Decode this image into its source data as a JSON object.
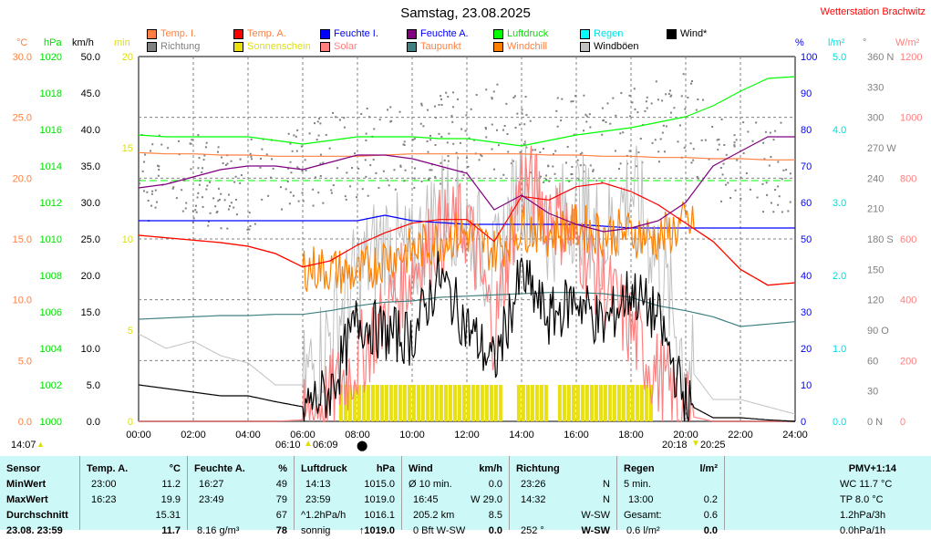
{
  "title": "Samstag, 23.08.2025",
  "station": "Wetterstation Brachwitz",
  "legend": [
    {
      "label": "Temp. I.",
      "color": "#ff8040",
      "text": "#ff8040"
    },
    {
      "label": "Temp. A.",
      "color": "#ff0000",
      "text": "#ff8040"
    },
    {
      "label": "Feuchte I.",
      "color": "#0000ff",
      "text": "#0000ff"
    },
    {
      "label": "Feuchte A.",
      "color": "#800080",
      "text": "#0000ff"
    },
    {
      "label": "Luftdruck",
      "color": "#00ff00",
      "text": "#00e000"
    },
    {
      "label": "Regen",
      "color": "#00ffff",
      "text": "#00e0e0"
    },
    {
      "label": "Wind*",
      "color": "#000000",
      "text": "#000000"
    },
    {
      "label": "Richtung",
      "color": "#808080",
      "text": "#808080"
    },
    {
      "label": "Sonnenschein",
      "color": "#e8e010",
      "text": "#e0e000"
    },
    {
      "label": "Solar",
      "color": "#ff8080",
      "text": "#ff8080"
    },
    {
      "label": "Taupunkt",
      "color": "#408080",
      "text": "#ff8040"
    },
    {
      "label": "Windchill",
      "color": "#ff8000",
      "text": "#ff8040"
    },
    {
      "label": "Windböen",
      "color": "#c0c0c0",
      "text": "#000000"
    }
  ],
  "units": {
    "c": "°C",
    "hpa": "hPa",
    "kmh": "km/h",
    "min": "min",
    "pct": "%",
    "rain": "l/m²",
    "deg": "°",
    "wm2": "W/m²"
  },
  "chart_data": {
    "type": "line",
    "title": "Samstag, 23.08.2025",
    "x_hours": [
      0,
      1,
      2,
      3,
      4,
      5,
      6,
      7,
      8,
      9,
      10,
      11,
      12,
      13,
      14,
      15,
      16,
      17,
      18,
      19,
      20,
      21,
      22,
      23,
      24
    ],
    "xticks": [
      "00:00",
      "02:00",
      "04:00",
      "06:00",
      "08:00",
      "10:00",
      "12:00",
      "14:00",
      "16:00",
      "18:00",
      "20:00",
      "22:00",
      "24:00"
    ],
    "axes": {
      "temp_c": {
        "range": [
          0,
          30
        ],
        "ticks": [
          "30.0",
          "25.0",
          "20.0",
          "15.0",
          "10.0",
          "5.0",
          "0.0"
        ]
      },
      "pressure_hpa": {
        "range": [
          1000,
          1020
        ],
        "ticks": [
          "1020",
          "1018",
          "1016",
          "1014",
          "1012",
          "1010",
          "1008",
          "1006",
          "1004",
          "1002",
          "1000"
        ]
      },
      "wind_kmh": {
        "range": [
          0,
          50
        ],
        "ticks": [
          "50.0",
          "45.0",
          "40.0",
          "35.0",
          "30.0",
          "25.0",
          "20.0",
          "15.0",
          "10.0",
          "5.0",
          "0.0"
        ]
      },
      "sun_min": {
        "range": [
          0,
          20
        ],
        "ticks": [
          "20",
          "15",
          "10",
          "5",
          "0"
        ]
      },
      "humidity_pct": {
        "range": [
          0,
          100
        ],
        "ticks": [
          "100",
          "90",
          "80",
          "70",
          "60",
          "50",
          "40",
          "30",
          "20",
          "10",
          "0"
        ]
      },
      "rain_lm2": {
        "range": [
          0,
          5
        ],
        "ticks": [
          "5.0",
          "4.0",
          "3.0",
          "2.0",
          "1.0",
          "0.0"
        ]
      },
      "direction_deg": {
        "range": [
          0,
          360
        ],
        "ticks": [
          "360 N",
          "330",
          "300",
          "270 W",
          "240",
          "210",
          "180 S",
          "150",
          "120",
          "90 O",
          "60",
          "30",
          "0 N"
        ]
      },
      "solar_wm2": {
        "range": [
          0,
          1200
        ],
        "ticks": [
          "1200",
          "1000",
          "800",
          "600",
          "400",
          "200",
          "0"
        ]
      }
    },
    "series": [
      {
        "name": "Temp. I.",
        "axis": "temp_c",
        "color": "#ff8040",
        "values": [
          22.1,
          22.0,
          22.0,
          21.9,
          21.9,
          21.8,
          21.8,
          21.8,
          21.8,
          21.9,
          22.0,
          22.0,
          22.0,
          22.0,
          22.0,
          21.9,
          21.9,
          21.8,
          21.8,
          21.7,
          21.7,
          21.6,
          21.6,
          21.5,
          21.5
        ]
      },
      {
        "name": "Temp. A.",
        "axis": "temp_c",
        "color": "#ff0000",
        "values": [
          15.3,
          15.1,
          14.9,
          14.7,
          14.4,
          13.8,
          12.7,
          13.2,
          14.5,
          15.5,
          16.3,
          16.6,
          16.6,
          14.8,
          18.5,
          18.2,
          19.3,
          19.6,
          18.9,
          17.8,
          16.3,
          14.8,
          12.5,
          11.2,
          11.4
        ]
      },
      {
        "name": "Feuchte I.",
        "axis": "humidity_pct",
        "color": "#0000ff",
        "values": [
          55,
          55,
          55,
          55,
          55,
          55,
          55,
          55,
          55,
          56.5,
          55,
          54.5,
          54,
          54,
          54,
          54,
          54,
          53.5,
          53,
          53,
          53,
          53,
          53,
          53,
          53
        ]
      },
      {
        "name": "Feuchte A.",
        "axis": "humidity_pct",
        "color": "#800080",
        "values": [
          64,
          65,
          67,
          69,
          70,
          70,
          69,
          71,
          73,
          73,
          72,
          70,
          68,
          58,
          62,
          57,
          54,
          52,
          53,
          55,
          60,
          70,
          74,
          78,
          78
        ]
      },
      {
        "name": "Luftdruck",
        "axis": "pressure_hpa",
        "color": "#00ff00",
        "values": [
          1015.7,
          1015.6,
          1015.6,
          1015.6,
          1015.6,
          1015.4,
          1015.2,
          1015.4,
          1015.6,
          1015.6,
          1015.6,
          1015.5,
          1015.5,
          1015.3,
          1015.1,
          1015.4,
          1015.7,
          1015.9,
          1016.1,
          1016.4,
          1016.7,
          1017.3,
          1018.1,
          1018.8,
          1018.9
        ]
      },
      {
        "name": "Taupunkt",
        "axis": "temp_c",
        "color": "#408080",
        "values": [
          8.4,
          8.5,
          8.6,
          8.7,
          8.7,
          8.8,
          8.8,
          9.1,
          9.5,
          9.8,
          9.9,
          10.2,
          10.3,
          10.4,
          10.5,
          10.6,
          10.6,
          10.5,
          10.2,
          9.5,
          9.1,
          8.6,
          7.8,
          8.0,
          8.2
        ]
      },
      {
        "name": "Windchill",
        "axis": "temp_c",
        "color": "#ff8000",
        "values": [
          15.3,
          15.1,
          14.9,
          14.7,
          14.4,
          13.8,
          12.7,
          12.5,
          12.0,
          13.5,
          14.0,
          15.0,
          15.5,
          14.0,
          16.0,
          15.5,
          16.0,
          15.5,
          15.5,
          15.0,
          16.3,
          14.8,
          12.5,
          11.2,
          11.4
        ]
      },
      {
        "name": "Wind*",
        "axis": "wind_kmh",
        "color": "#000000",
        "values": [
          5,
          4.5,
          4,
          3.5,
          3.5,
          2.7,
          2,
          4,
          14,
          12,
          11.5,
          20,
          13,
          7.7,
          20,
          14,
          17,
          13,
          18,
          14,
          2.5,
          0.5,
          0.5,
          0.2,
          0
        ]
      },
      {
        "name": "Windböen",
        "axis": "wind_kmh",
        "color": "#c0c0c0",
        "values": [
          12,
          10,
          11,
          9,
          8,
          5,
          5,
          12,
          20,
          25,
          22,
          30,
          28,
          20,
          33,
          26,
          30,
          25,
          32,
          22,
          8,
          3,
          3,
          2,
          1
        ]
      },
      {
        "name": "Solar",
        "axis": "solar_wm2",
        "color": "#ff8080",
        "values": [
          0,
          0,
          0,
          0,
          0,
          0,
          5,
          80,
          200,
          350,
          500,
          620,
          650,
          300,
          800,
          700,
          600,
          450,
          300,
          150,
          20,
          0,
          0,
          0,
          0
        ]
      },
      {
        "name": "Richtung",
        "axis": "direction_deg",
        "color": "#808080",
        "values": [
          240,
          245,
          240,
          235,
          235,
          240,
          250,
          260,
          265,
          270,
          275,
          280,
          285,
          290,
          280,
          275,
          285,
          280,
          290,
          300,
          300,
          260,
          255,
          252,
          252
        ]
      }
    ],
    "sunshine_minutes_10min_bins": {
      "start_hour": 7.33,
      "end_hour": 18.67,
      "value": 2
    },
    "reference_line": {
      "axis": "humidity_pct",
      "value": 66,
      "color": "#00ff00"
    }
  },
  "footer": {
    "moonrise": "14:07",
    "sunrise1": "06:10",
    "sunrise2": "06:09",
    "noon_marker": "08:00",
    "sunset1": "20:18",
    "sunset2": "20:25"
  },
  "table": {
    "sensor": {
      "h": "Sensor",
      "min": "MinWert",
      "max": "MaxWert",
      "avg": "Durchschnitt",
      "now": "23.08. 23:59"
    },
    "temp": {
      "h": "Temp. A.",
      "u": "°C",
      "min_t": "23:00",
      "min": "11.2",
      "max_t": "16:23",
      "max": "19.9",
      "avg": "15.31",
      "now": "11.7"
    },
    "hum": {
      "h": "Feuchte A.",
      "u": "%",
      "min_t": "16:27",
      "min": "49",
      "max_t": "23:49",
      "max": "79",
      "avg": "67",
      "abs": "8.16 g/m³",
      "now": "78"
    },
    "press": {
      "h": "Luftdruck",
      "u": "hPa",
      "min_t": "14:13",
      "min": "1015.0",
      "max_t": "23:59",
      "max": "1019.0",
      "trend": "^1.2hPa/h",
      "avg": "1016.1",
      "fc": "sonnig",
      "now": "↑1019.0"
    },
    "wind": {
      "h": "Wind",
      "u": "km/h",
      "r1": "Ø 10 min.",
      "r1v": "0.0",
      "max_t": "16:45",
      "max": "W 29.0",
      "dist": "205.2 km",
      "avg": "8.5",
      "bft": "0 Bft W-SW",
      "now": "0.0"
    },
    "dir": {
      "h": "Richtung",
      "min_t": "23:26",
      "min": "N",
      "max_t": "14:32",
      "max": "N",
      "avg": "W-SW",
      "deg": "252 °",
      "now": "W-SW"
    },
    "rain": {
      "h": "Regen",
      "u": "l/m²",
      "r1": "5 min.",
      "max_t": "13:00",
      "max": "0.2",
      "tot": "Gesamt:",
      "totv": "0.6",
      "day": "0.6 l/m²",
      "now": "0.0"
    },
    "extra": {
      "pmv": "PMV+1:14",
      "wc": "WC 11.7 °C",
      "tp": "TP 8.0 °C",
      "p3": "1.2hPa/3h",
      "p1": "0.0hPa/1h"
    }
  }
}
